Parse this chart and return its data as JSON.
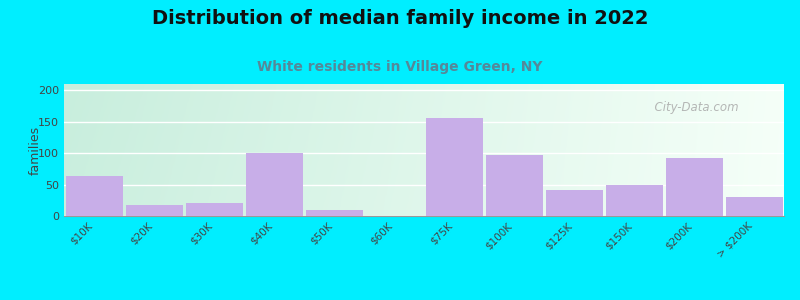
{
  "title": "Distribution of median family income in 2022",
  "subtitle": "White residents in Village Green, NY",
  "categories": [
    "$10K",
    "$20K",
    "$30K",
    "$40K",
    "$50K",
    "$60K",
    "$75K",
    "$100K",
    "$125K",
    "$150K",
    "$200K",
    "> $200K"
  ],
  "values": [
    63,
    17,
    20,
    101,
    10,
    0,
    156,
    97,
    41,
    49,
    92,
    31
  ],
  "bar_color": "#c8aee8",
  "background_outer": "#00eeff",
  "ylabel": "families",
  "ylim": [
    0,
    210
  ],
  "yticks": [
    0,
    50,
    100,
    150,
    200
  ],
  "title_fontsize": 14,
  "subtitle_fontsize": 10,
  "watermark": "  City-Data.com",
  "bg_left": "#c8eedd",
  "bg_right": "#eef8ee",
  "bg_top": "#ddf4e8",
  "bg_bottom": "#f0faf0"
}
